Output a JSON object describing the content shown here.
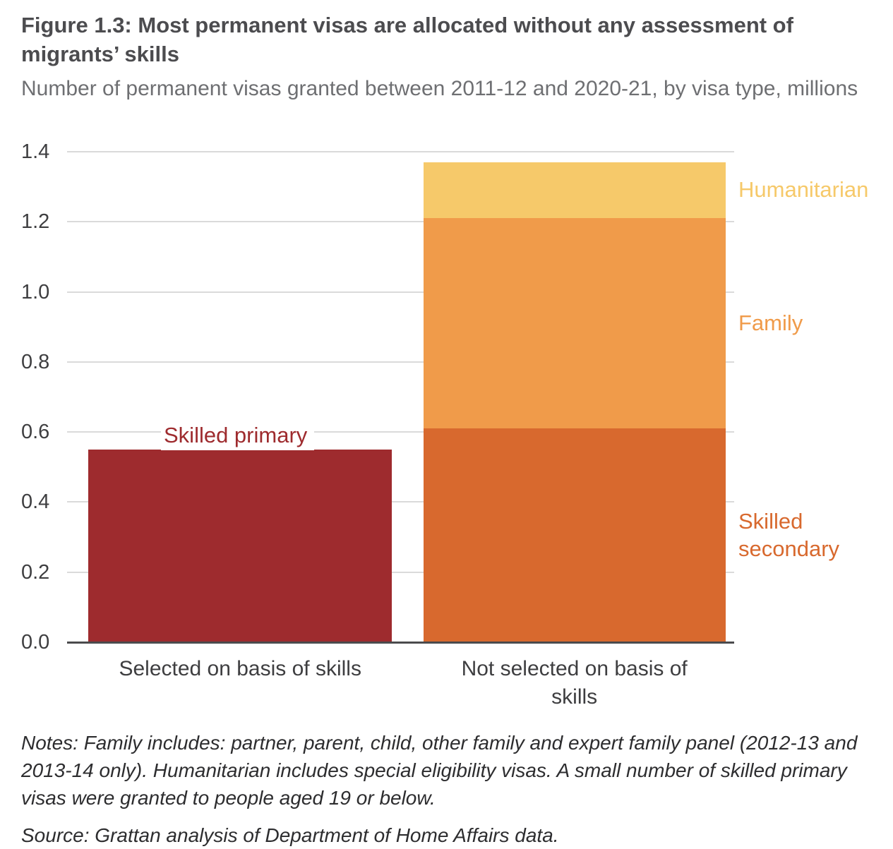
{
  "figure": {
    "title": "Figure 1.3: Most permanent visas are allocated without any assessment of migrants’ skills",
    "subtitle": "Number of permanent visas granted between 2011-12 and 2020-21, by visa type, millions",
    "notes": "Notes: Family includes: partner, parent, child, other family and expert family panel (2012-13 and 2013-14 only). Humanitarian includes special eligibility visas. A small number of skilled primary visas were granted to people aged 19 or below.",
    "source": "Source: Grattan analysis of Department of Home Affairs data."
  },
  "chart_data": {
    "type": "bar",
    "stacked": true,
    "title": "Figure 1.3: Most permanent visas are allocated without any assessment of migrants’ skills",
    "subtitle": "Number of permanent visas granted between 2011-12 and 2020-21, by visa type, millions",
    "categories": [
      "Selected on basis of skills",
      "Not selected on basis of skills"
    ],
    "series": [
      {
        "name": "Skilled primary",
        "values": [
          0.55,
          0
        ],
        "color": "#9e2b2e"
      },
      {
        "name": "Skilled secondary",
        "values": [
          0,
          0.61
        ],
        "color": "#d8692e"
      },
      {
        "name": "Family",
        "values": [
          0,
          0.6
        ],
        "color": "#f09b4a"
      },
      {
        "name": "Humanitarian",
        "values": [
          0,
          0.16
        ],
        "color": "#f6c96a"
      }
    ],
    "ylim": [
      0,
      1.4
    ],
    "yticks": [
      0,
      0.2,
      0.4,
      0.6,
      0.8,
      1.0,
      1.2,
      1.4
    ],
    "grid": true,
    "xlabel": "",
    "ylabel": "",
    "legend_position": "segment-labels-right",
    "colors": {
      "grid": "#dadada",
      "baseline": "#4b4b4d",
      "tick_text": "#3e3e40"
    }
  }
}
